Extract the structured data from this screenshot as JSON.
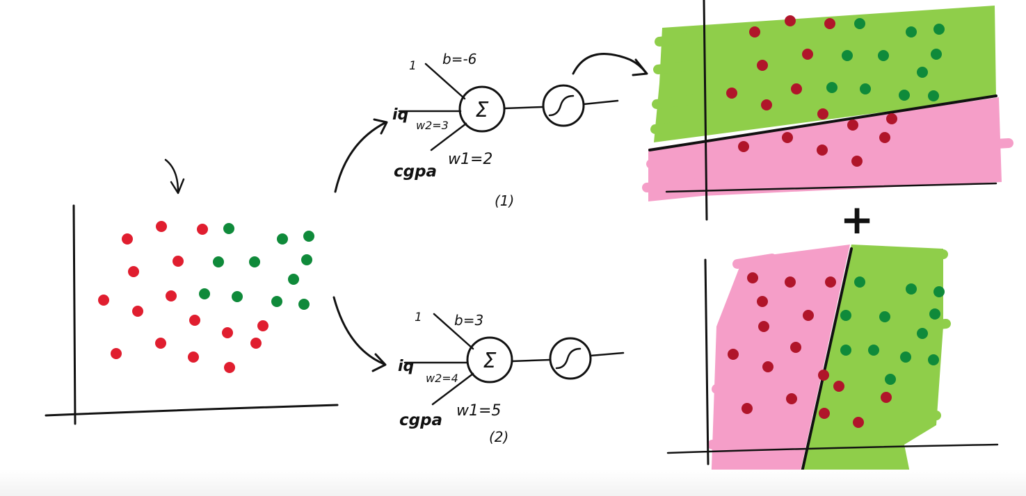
{
  "colors": {
    "red_dot": "#e01e2f",
    "dark_red_dot": "#b0152a",
    "green_dot": "#0f8a3a",
    "green_region": "#8fce4a",
    "pink_region": "#f59ec8",
    "ink": "#111111"
  },
  "perceptron_1": {
    "bias_input": "1",
    "bias_label": "b=-6",
    "input_top": "iq",
    "input_bottom": "cgpa",
    "w2_label": "w2=3",
    "w1_label": "w1=2",
    "sum_symbol": "Σ",
    "index_label": "(1)"
  },
  "perceptron_2": {
    "bias_input": "1",
    "bias_label": "b=3",
    "input_top": "iq",
    "input_bottom": "cgpa",
    "w2_label": "w2=4",
    "w1_label": "w1=5",
    "sum_symbol": "Σ",
    "index_label": "(2)"
  },
  "combine_symbol": "+"
}
